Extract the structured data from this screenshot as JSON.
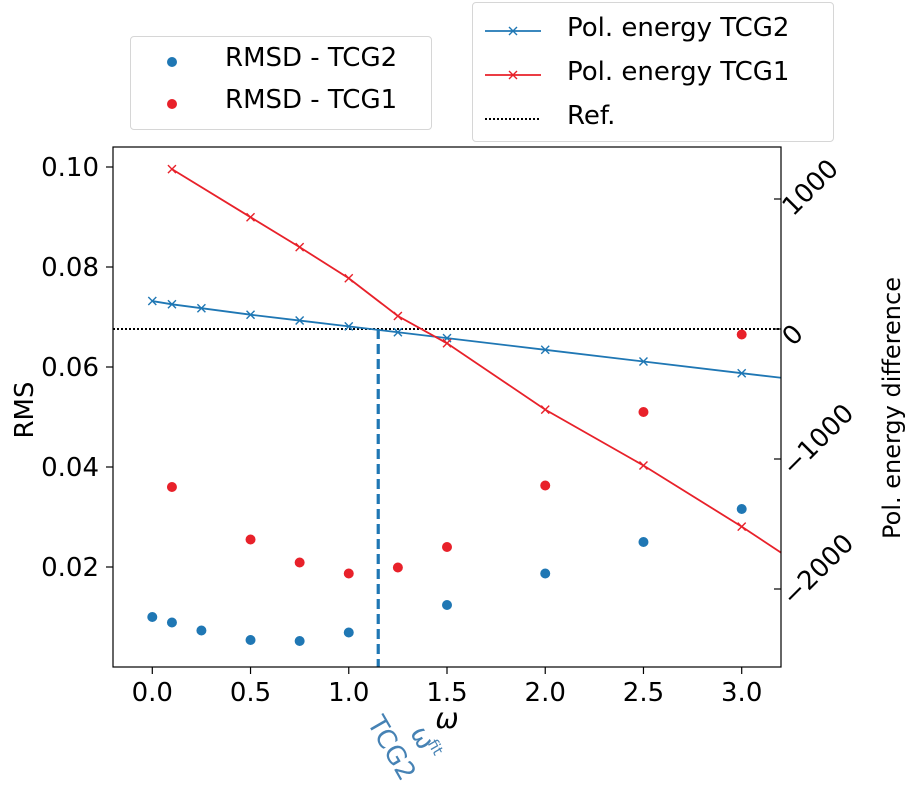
{
  "chart_data": {
    "type": "scatter+line",
    "xlabel": "ω",
    "ylabel_left": "RMS",
    "ylabel_right": "Pol. energy difference",
    "xlim": [
      -0.2,
      3.2
    ],
    "ylim_left": [
      0.0,
      0.104
    ],
    "ylim_right": [
      -2600,
      1400
    ],
    "x_ticks": [
      "0.0",
      "0.5",
      "1.0",
      "1.5",
      "2.0",
      "2.5",
      "3.0"
    ],
    "y_left_ticks": [
      "0.02",
      "0.04",
      "0.06",
      "0.08",
      "0.10"
    ],
    "y_right_ticks": [
      "−2000",
      "−1000",
      "0",
      "1000"
    ],
    "scatter_series": [
      {
        "name": "RMSD - TCG2",
        "color": "#1f77b4",
        "x": [
          0.0,
          0.1,
          0.25,
          0.5,
          0.75,
          1.0,
          1.5,
          2.0,
          2.5,
          3.0
        ],
        "y": [
          0.01,
          0.0089,
          0.0073,
          0.0054,
          0.0052,
          0.0069,
          0.0124,
          0.0187,
          0.025,
          0.0316
        ]
      },
      {
        "name": "RMSD - TCG1",
        "color": "#e8212a",
        "x": [
          0.1,
          0.5,
          0.75,
          1.0,
          1.25,
          1.5,
          2.0,
          2.5,
          3.0
        ],
        "y": [
          0.036,
          0.0255,
          0.0209,
          0.0187,
          0.0199,
          0.024,
          0.0363,
          0.051,
          0.0665
        ]
      }
    ],
    "line_series": [
      {
        "name": "Pol. energy TCG2",
        "color": "#1f77b4",
        "x": [
          0.0,
          0.1,
          0.25,
          0.5,
          0.75,
          1.0,
          1.25,
          1.5,
          2.0,
          2.5,
          3.0
        ],
        "y": [
          215,
          190,
          160,
          110,
          65,
          20,
          -25,
          -70,
          -160,
          -250,
          -340
        ],
        "line_end": {
          "x": 3.2,
          "y": -375
        }
      },
      {
        "name": "Pol. energy TCG1",
        "color": "#e8212a",
        "x": [
          0.1,
          0.5,
          0.75,
          1.0,
          1.25,
          1.5,
          2.0,
          2.5,
          3.0
        ],
        "y": [
          1230,
          860,
          630,
          390,
          100,
          -110,
          -620,
          -1050,
          -1520
        ],
        "line_end": {
          "x": 3.2,
          "y": -1720
        }
      }
    ],
    "reference": {
      "name": "Ref.",
      "y": 0,
      "style": "dotted",
      "color": "#000000"
    },
    "vline": {
      "x": 1.15,
      "color": "#1f77b4",
      "style": "dashed",
      "label_main": "ω",
      "label_sup": "fit",
      "label_sub": "TCG2"
    }
  },
  "legend_left": [
    {
      "label": "RMSD - TCG2",
      "color": "#1f77b4"
    },
    {
      "label": "RMSD - TCG1",
      "color": "#e8212a"
    }
  ],
  "legend_right": [
    {
      "label": "Pol. energy TCG2",
      "color": "#1f77b4"
    },
    {
      "label": "Pol. energy TCG1",
      "color": "#e8212a"
    },
    {
      "label": "Ref.",
      "color": "#000000"
    }
  ]
}
